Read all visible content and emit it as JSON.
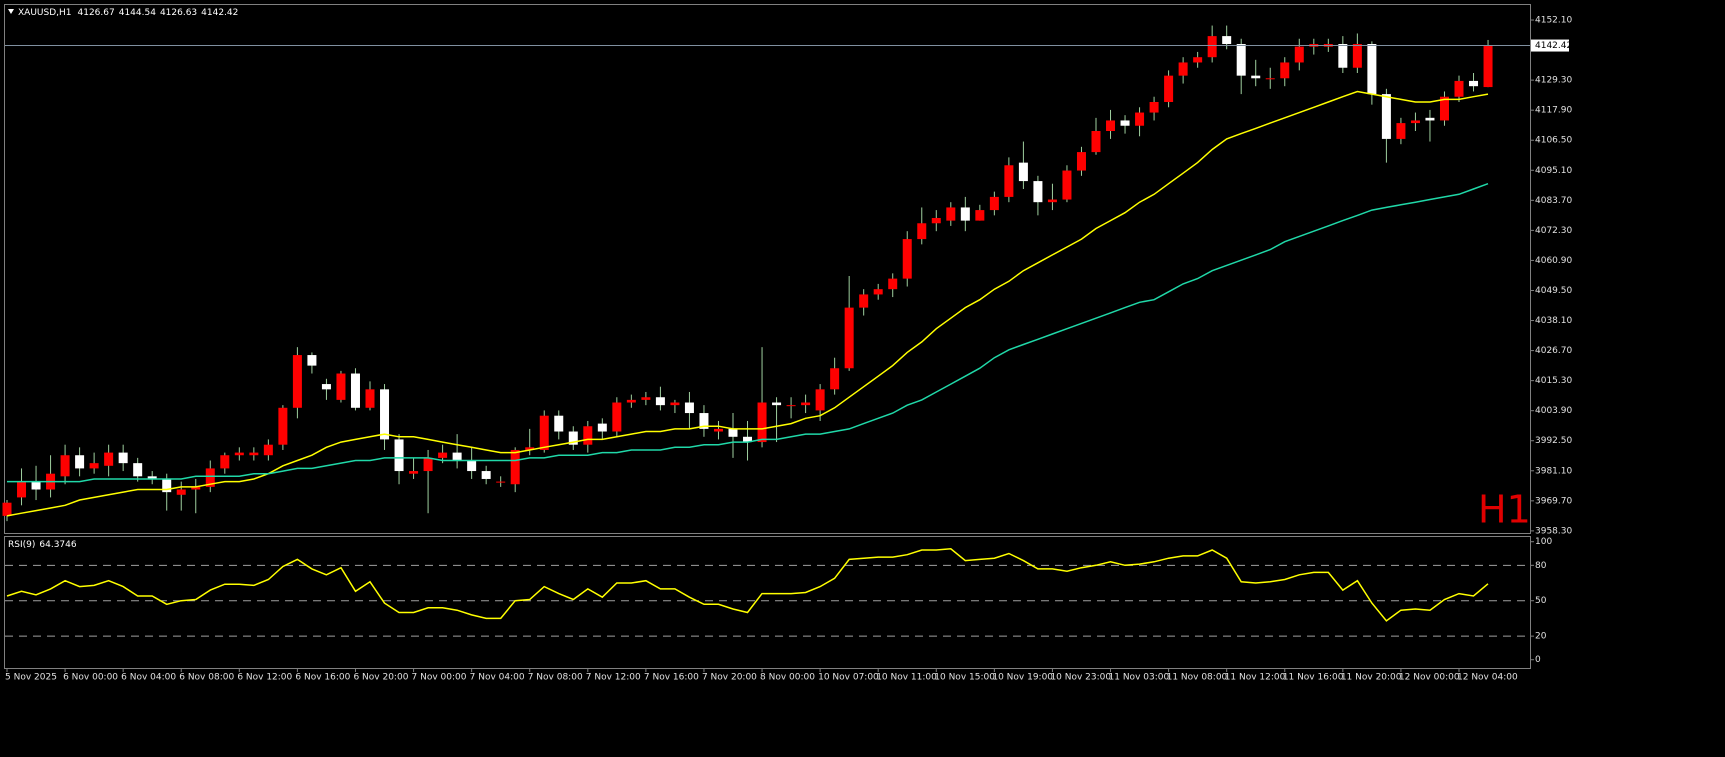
{
  "chart_data": [
    {
      "type": "candlestick",
      "title": "XAUUSD,H1",
      "timeframe_label": "H1",
      "categories": [
        "5 Nov 2025",
        null,
        null,
        null,
        "6 Nov 00:00",
        null,
        null,
        null,
        "6 Nov 04:00",
        null,
        null,
        null,
        "6 Nov 08:00",
        null,
        null,
        null,
        "6 Nov 12:00",
        null,
        null,
        null,
        "6 Nov 16:00",
        null,
        null,
        null,
        "6 Nov 20:00",
        null,
        null,
        null,
        "7 Nov 00:00",
        null,
        null,
        null,
        "7 Nov 04:00",
        null,
        null,
        null,
        "7 Nov 08:00",
        null,
        null,
        null,
        "7 Nov 12:00",
        null,
        null,
        null,
        "7 Nov 16:00",
        null,
        null,
        null,
        "7 Nov 20:00",
        null,
        null,
        null,
        "8 Nov 00:00",
        null,
        null,
        null,
        "10 Nov 07:00",
        null,
        null,
        null,
        "10 Nov 11:00",
        null,
        null,
        null,
        "10 Nov 15:00",
        null,
        null,
        null,
        "10 Nov 19:00",
        null,
        null,
        null,
        "10 Nov 23:00",
        null,
        null,
        null,
        "11 Nov 03:00",
        null,
        null,
        null,
        "11 Nov 08:00",
        null,
        null,
        null,
        "11 Nov 12:00",
        null,
        null,
        null,
        "11 Nov 16:00",
        null,
        null,
        null,
        "11 Nov 20:00",
        null,
        null,
        null,
        "12 Nov 00:00",
        null,
        null,
        null,
        "12 Nov 04:00",
        null,
        null
      ],
      "open": [
        3964,
        3971,
        3977,
        3974,
        3979,
        3987,
        3982,
        3983,
        3988,
        3984,
        3979,
        3978,
        3972,
        3974,
        3975,
        3982,
        3987,
        3987,
        3987,
        3991,
        4005,
        4025,
        4014,
        4008,
        4018,
        4005,
        4012,
        3993,
        3980,
        3981,
        3986,
        3988,
        3985,
        3981,
        3977,
        3976,
        3989,
        3989,
        4002,
        3996,
        3991,
        3999,
        3996,
        4007,
        4008,
        4009,
        4006,
        4007,
        4003,
        3996,
        3997,
        3994,
        3992,
        4007,
        4006,
        4006,
        4004,
        4012,
        4020,
        4043,
        4048,
        4050,
        4054,
        4069,
        4075,
        4076,
        4081,
        4076,
        4080,
        4085,
        4098,
        4091,
        4083,
        4084,
        4095,
        4102,
        4110,
        4114,
        4112,
        4117,
        4121,
        4131,
        4136,
        4138,
        4146,
        4143,
        4131,
        4130,
        4130,
        4136,
        4142,
        4142,
        4143,
        4134,
        4143,
        4124,
        4107,
        4113,
        4115,
        4114,
        4123,
        4129,
        4126.67
      ],
      "high": [
        3970,
        3982,
        3983,
        3987,
        3991,
        3990,
        3988,
        3991,
        3991,
        3986,
        3981,
        3980,
        3977,
        3978,
        3985,
        3988,
        3990,
        3990,
        3993,
        4006,
        4028,
        4026,
        4016,
        4019,
        4020,
        4015,
        4014,
        3995,
        3986,
        3989,
        3991,
        3995,
        3990,
        3983,
        3979,
        3990,
        3997,
        4004,
        4004,
        3998,
        4000,
        4001,
        4009,
        4010,
        4011,
        4013,
        4008,
        4011,
        4006,
        4000,
        4003,
        4000,
        4028,
        4009,
        4009,
        4010,
        4014,
        4024,
        4055,
        4050,
        4052,
        4056,
        4072,
        4081,
        4080,
        4083,
        4085,
        4082,
        4087,
        4100,
        4106,
        4093,
        4090,
        4097,
        4104,
        4115,
        4118,
        4116,
        4119,
        4123,
        4133,
        4138,
        4140,
        4150,
        4150,
        4145,
        4137,
        4134,
        4138,
        4145,
        4145,
        4145,
        4146,
        4147,
        4144,
        4126,
        4115,
        4117,
        4118,
        4125,
        4131,
        4132,
        4144.54
      ],
      "low": [
        3962,
        3968,
        3970,
        3971,
        3976,
        3979,
        3980,
        3979,
        3981,
        3977,
        3976,
        3966,
        3966,
        3965,
        3973,
        3980,
        3985,
        3985,
        3985,
        3989,
        4001,
        4018,
        4008,
        4007,
        4004,
        4004,
        3989,
        3976,
        3978,
        3965,
        3984,
        3982,
        3978,
        3976,
        3975,
        3973,
        3987,
        3988,
        3993,
        3989,
        3988,
        3993,
        3994,
        4005,
        4006,
        4004,
        4003,
        3997,
        3994,
        3993,
        3986,
        3985,
        3990,
        3992,
        4001,
        4003,
        4000,
        4010,
        4019,
        4040,
        4046,
        4047,
        4051,
        4067,
        4072,
        4074,
        4072,
        4076,
        4078,
        4083,
        4088,
        4078,
        4080,
        4083,
        4093,
        4101,
        4107,
        4109,
        4108,
        4114,
        4119,
        4128,
        4134,
        4136,
        4141,
        4124,
        4127,
        4126,
        4127,
        4133,
        4139,
        4140,
        4132,
        4132,
        4120,
        4098,
        4105,
        4110,
        4106,
        4112,
        4121,
        4125,
        4126.63
      ],
      "close": [
        3969,
        3977,
        3974,
        3980,
        3987,
        3982,
        3984,
        3988,
        3984,
        3979,
        3978,
        3973,
        3974,
        3975,
        3982,
        3987,
        3988,
        3988,
        3991,
        4005,
        4025,
        4021,
        4012,
        4018,
        4005,
        4012,
        3993,
        3981,
        3981,
        3986,
        3988,
        3985,
        3981,
        3978,
        3977,
        3989,
        3990,
        4002,
        3996,
        3991,
        3998,
        3996,
        4007,
        4008,
        4009,
        4006,
        4007,
        4003,
        3997,
        3997,
        3994,
        3992,
        4007,
        4006,
        4006,
        4007,
        4012,
        4020,
        4043,
        4048,
        4050,
        4054,
        4069,
        4075,
        4077,
        4081,
        4076,
        4080,
        4085,
        4097,
        4091,
        4083,
        4084,
        4095,
        4102,
        4110,
        4114,
        4112,
        4117,
        4121,
        4131,
        4136,
        4138,
        4146,
        4143,
        4131,
        4130,
        4130,
        4136,
        4142,
        4143,
        4143,
        4134,
        4143,
        4124,
        4107,
        4113,
        4114,
        4114,
        4123,
        4129,
        4127,
        4142.42
      ],
      "up_color": "#ff0000",
      "down_color": "#ffffff",
      "wick_color": "#9fd09f",
      "series": [
        {
          "color": "#ffff00",
          "values": [
            3964,
            3965,
            3966,
            3967,
            3968,
            3970,
            3971,
            3972,
            3973,
            3974,
            3974,
            3974,
            3975,
            3975,
            3976,
            3977,
            3977,
            3978,
            3980,
            3983,
            3985,
            3987,
            3990,
            3992,
            3993,
            3994,
            3995,
            3994,
            3994,
            3993,
            3992,
            3991,
            3990,
            3989,
            3988,
            3988,
            3989,
            3990,
            3991,
            3992,
            3993,
            3993,
            3994,
            3995,
            3996,
            3996,
            3997,
            3997,
            3998,
            3998,
            3997,
            3997,
            3997,
            3998,
            3999,
            4001,
            4002,
            4005,
            4009,
            4013,
            4017,
            4021,
            4026,
            4030,
            4035,
            4039,
            4043,
            4046,
            4050,
            4053,
            4057,
            4060,
            4063,
            4066,
            4069,
            4073,
            4076,
            4079,
            4083,
            4086,
            4090,
            4094,
            4098,
            4103,
            4107,
            4109,
            4111,
            4113,
            4115,
            4117,
            4119,
            4121,
            4123,
            4125,
            4124,
            4123,
            4122,
            4121,
            4121,
            4122,
            4122,
            4123,
            4124
          ]
        },
        {
          "color": "#20d8a8",
          "values": [
            3977,
            3977,
            3977,
            3977,
            3977,
            3977,
            3978,
            3978,
            3978,
            3978,
            3978,
            3978,
            3978,
            3979,
            3979,
            3979,
            3979,
            3980,
            3980,
            3981,
            3982,
            3982,
            3983,
            3984,
            3985,
            3985,
            3986,
            3986,
            3986,
            3986,
            3985,
            3985,
            3985,
            3985,
            3985,
            3985,
            3986,
            3986,
            3987,
            3987,
            3987,
            3988,
            3988,
            3989,
            3989,
            3989,
            3990,
            3990,
            3991,
            3991,
            3992,
            3992,
            3993,
            3993,
            3994,
            3995,
            3995,
            3996,
            3997,
            3999,
            4001,
            4003,
            4006,
            4008,
            4011,
            4014,
            4017,
            4020,
            4024,
            4027,
            4029,
            4031,
            4033,
            4035,
            4037,
            4039,
            4041,
            4043,
            4045,
            4046,
            4049,
            4052,
            4054,
            4057,
            4059,
            4061,
            4063,
            4065,
            4068,
            4070,
            4072,
            4074,
            4076,
            4078,
            4080,
            4081,
            4082,
            4083,
            4084,
            4085,
            4086,
            4088,
            4090
          ]
        }
      ],
      "ylim": [
        3957.5,
        4157.8
      ],
      "yticks": [
        {
          "value": 3958.3,
          "label": "3958.30"
        },
        {
          "value": 3969.7,
          "label": "3969.70"
        },
        {
          "value": 3981.1,
          "label": "3981.10"
        },
        {
          "value": 3992.5,
          "label": "3992.50"
        },
        {
          "value": 4003.9,
          "label": "4003.90"
        },
        {
          "value": 4015.3,
          "label": "4015.30"
        },
        {
          "value": 4026.7,
          "label": "4026.70"
        },
        {
          "value": 4038.1,
          "label": "4038.10"
        },
        {
          "value": 4049.5,
          "label": "4049.50"
        },
        {
          "value": 4060.9,
          "label": "4060.90"
        },
        {
          "value": 4072.3,
          "label": "4072.30"
        },
        {
          "value": 4083.7,
          "label": "4083.70"
        },
        {
          "value": 4095.1,
          "label": "4095.10"
        },
        {
          "value": 4106.5,
          "label": "4106.50"
        },
        {
          "value": 4117.9,
          "label": "4117.90"
        },
        {
          "value": 4129.3,
          "label": "4129.30"
        },
        {
          "value": 4152.1,
          "label": "4152.10"
        }
      ]
    },
    {
      "type": "line",
      "title": "RSI(9)",
      "series": [
        {
          "color": "#ffff00",
          "values": [
            54,
            58,
            55,
            60,
            67,
            62,
            63,
            67,
            62,
            54,
            54,
            47,
            50,
            51,
            59,
            64,
            64,
            63,
            68,
            79,
            85,
            77,
            72,
            78,
            58,
            66,
            48,
            40,
            40,
            44,
            44,
            42,
            38,
            35,
            35,
            50,
            51,
            62,
            56,
            51,
            60,
            53,
            65,
            65,
            67,
            60,
            60,
            53,
            47,
            47,
            43,
            40,
            56,
            56,
            56,
            57,
            62,
            69,
            85,
            86,
            87,
            87,
            89,
            93,
            93,
            94,
            84,
            85,
            86,
            90,
            84,
            77,
            77,
            75,
            78,
            80,
            83,
            80,
            81,
            83,
            86,
            88,
            88,
            93,
            86,
            66,
            65,
            66,
            68,
            72,
            74,
            74,
            59,
            67,
            48,
            33,
            42,
            43,
            42,
            51,
            56,
            54,
            64.3746
          ]
        }
      ],
      "ylim": [
        -7,
        104
      ],
      "yticks": [
        0,
        20,
        50,
        80,
        100
      ],
      "levels": [
        20,
        50,
        80
      ]
    }
  ]
}
